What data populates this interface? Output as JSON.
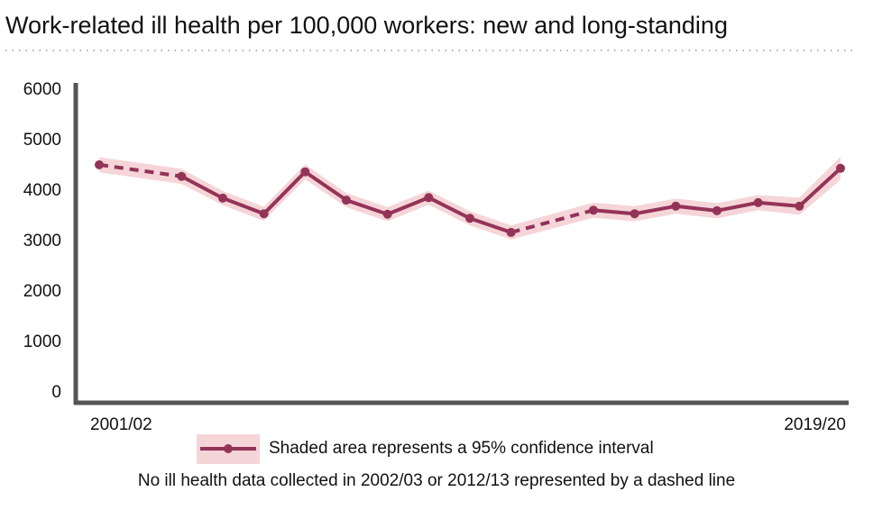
{
  "chart_data": {
    "type": "line",
    "title": "Work-related ill health per 100,000 workers: new and long-standing",
    "categories": [
      "2001/02",
      null,
      null,
      null,
      null,
      null,
      null,
      null,
      null,
      null,
      null,
      null,
      null,
      null,
      null,
      null,
      null,
      null,
      "2019/20"
    ],
    "series": [
      {
        "name": "Shaded area represents a 95% confidence interval",
        "color": "#943358",
        "band_color": "#f5d5d8",
        "values": [
          4520,
          null,
          4290,
          3860,
          3550,
          4380,
          3820,
          3540,
          3870,
          3460,
          3180,
          null,
          3620,
          3550,
          3700,
          3610,
          3770,
          3700,
          4450
        ],
        "lower": [
          4370,
          null,
          4140,
          3720,
          3410,
          4230,
          3680,
          3400,
          3730,
          3320,
          3040,
          null,
          3470,
          3400,
          3550,
          3460,
          3620,
          3530,
          4220
        ],
        "upper": [
          4670,
          null,
          4440,
          4000,
          3690,
          4530,
          3960,
          3680,
          4010,
          3600,
          3320,
          null,
          3770,
          3700,
          3850,
          3760,
          3920,
          3870,
          4680
        ]
      }
    ],
    "note": "No ill health data collected in 2002/03 or 2012/13 represented by a dashed line",
    "ylim": [
      0,
      6000
    ],
    "yticks": [
      0,
      1000,
      2000,
      3000,
      4000,
      5000,
      6000
    ],
    "grid": false
  }
}
